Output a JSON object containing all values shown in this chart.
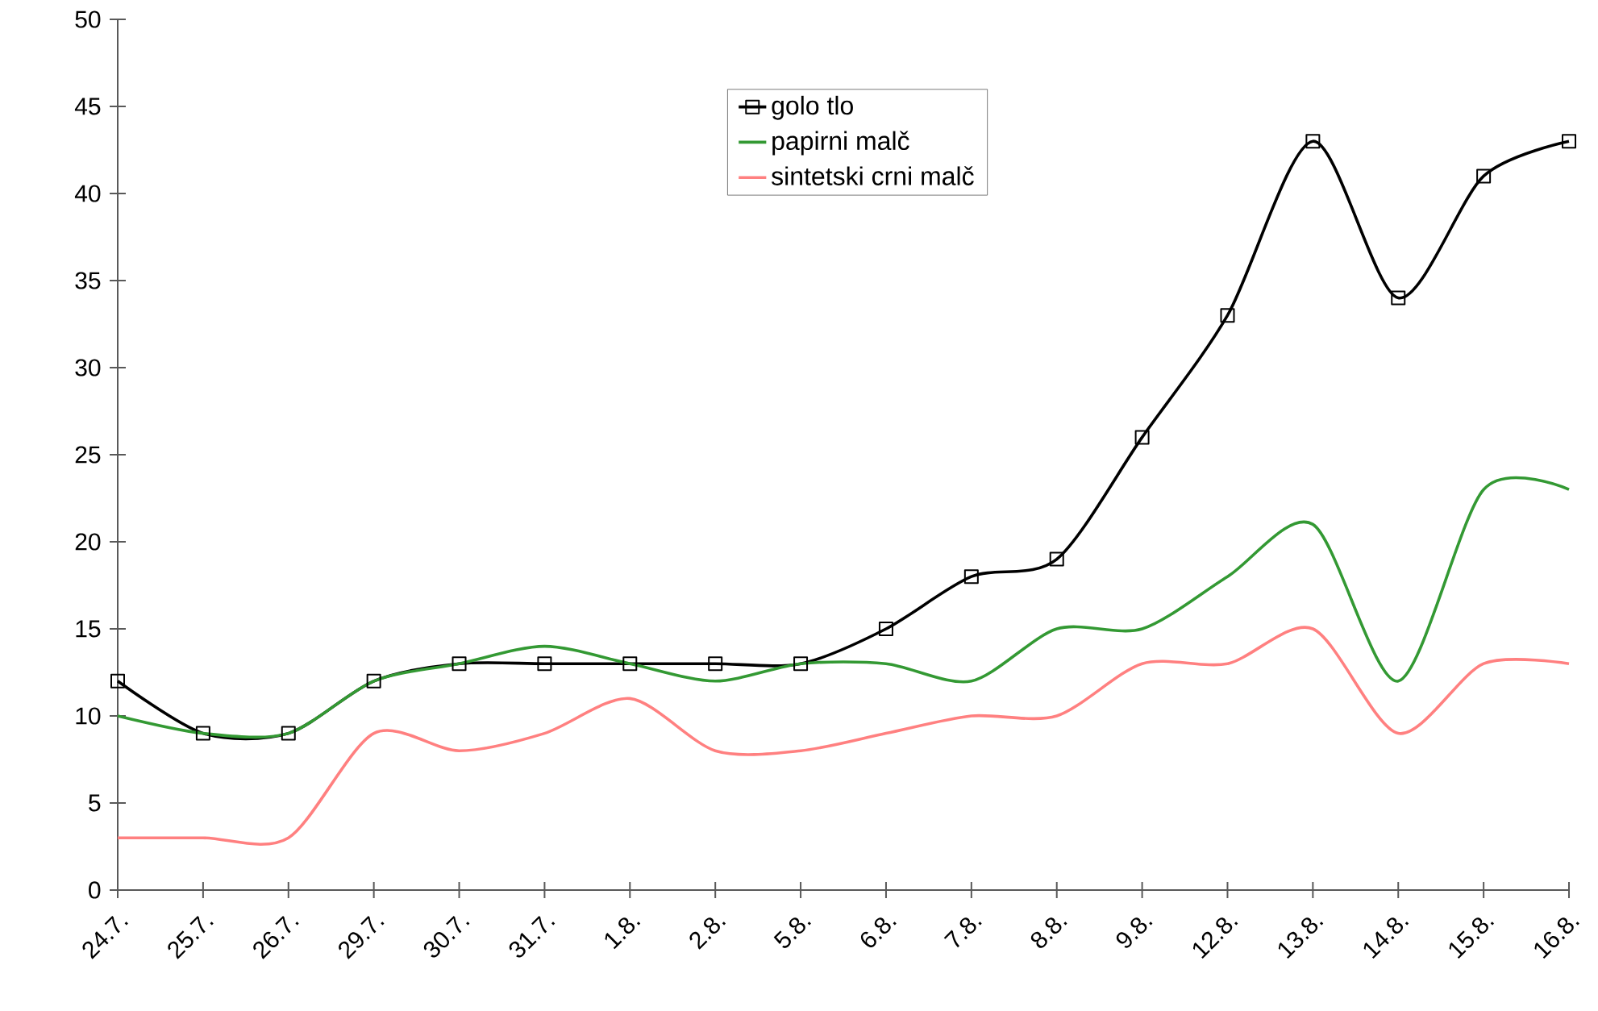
{
  "chart_data": {
    "type": "line",
    "categories": [
      "24.7.",
      "25.7.",
      "26.7.",
      "29.7.",
      "30.7.",
      "31.7.",
      "1.8.",
      "2.8.",
      "5.8.",
      "6.8.",
      "7.8.",
      "8.8.",
      "9.8.",
      "12.8.",
      "13.8.",
      "14.8.",
      "15.8.",
      "16.8."
    ],
    "series": [
      {
        "name": "golo tlo",
        "color": "#000000",
        "marker": "square",
        "values": [
          12,
          9,
          9,
          12,
          13,
          13,
          13,
          13,
          13,
          15,
          18,
          19,
          26,
          33,
          43,
          34,
          41,
          43
        ]
      },
      {
        "name": "papirni malč",
        "color": "#339933",
        "values": [
          10,
          9,
          9,
          12,
          13,
          14,
          13,
          12,
          13,
          13,
          12,
          15,
          15,
          18,
          21,
          12,
          23,
          23
        ]
      },
      {
        "name": "sintetski crni malč",
        "color": "#ff8080",
        "values": [
          3,
          3,
          3,
          9,
          8,
          9,
          11,
          8,
          8,
          9,
          10,
          10,
          13,
          13,
          15,
          9,
          13,
          13
        ]
      }
    ],
    "ylim": [
      0,
      50
    ],
    "yticks": [
      0,
      5,
      10,
      15,
      20,
      25,
      30,
      35,
      40,
      45,
      50
    ],
    "grid": false,
    "legend": "top right"
  }
}
